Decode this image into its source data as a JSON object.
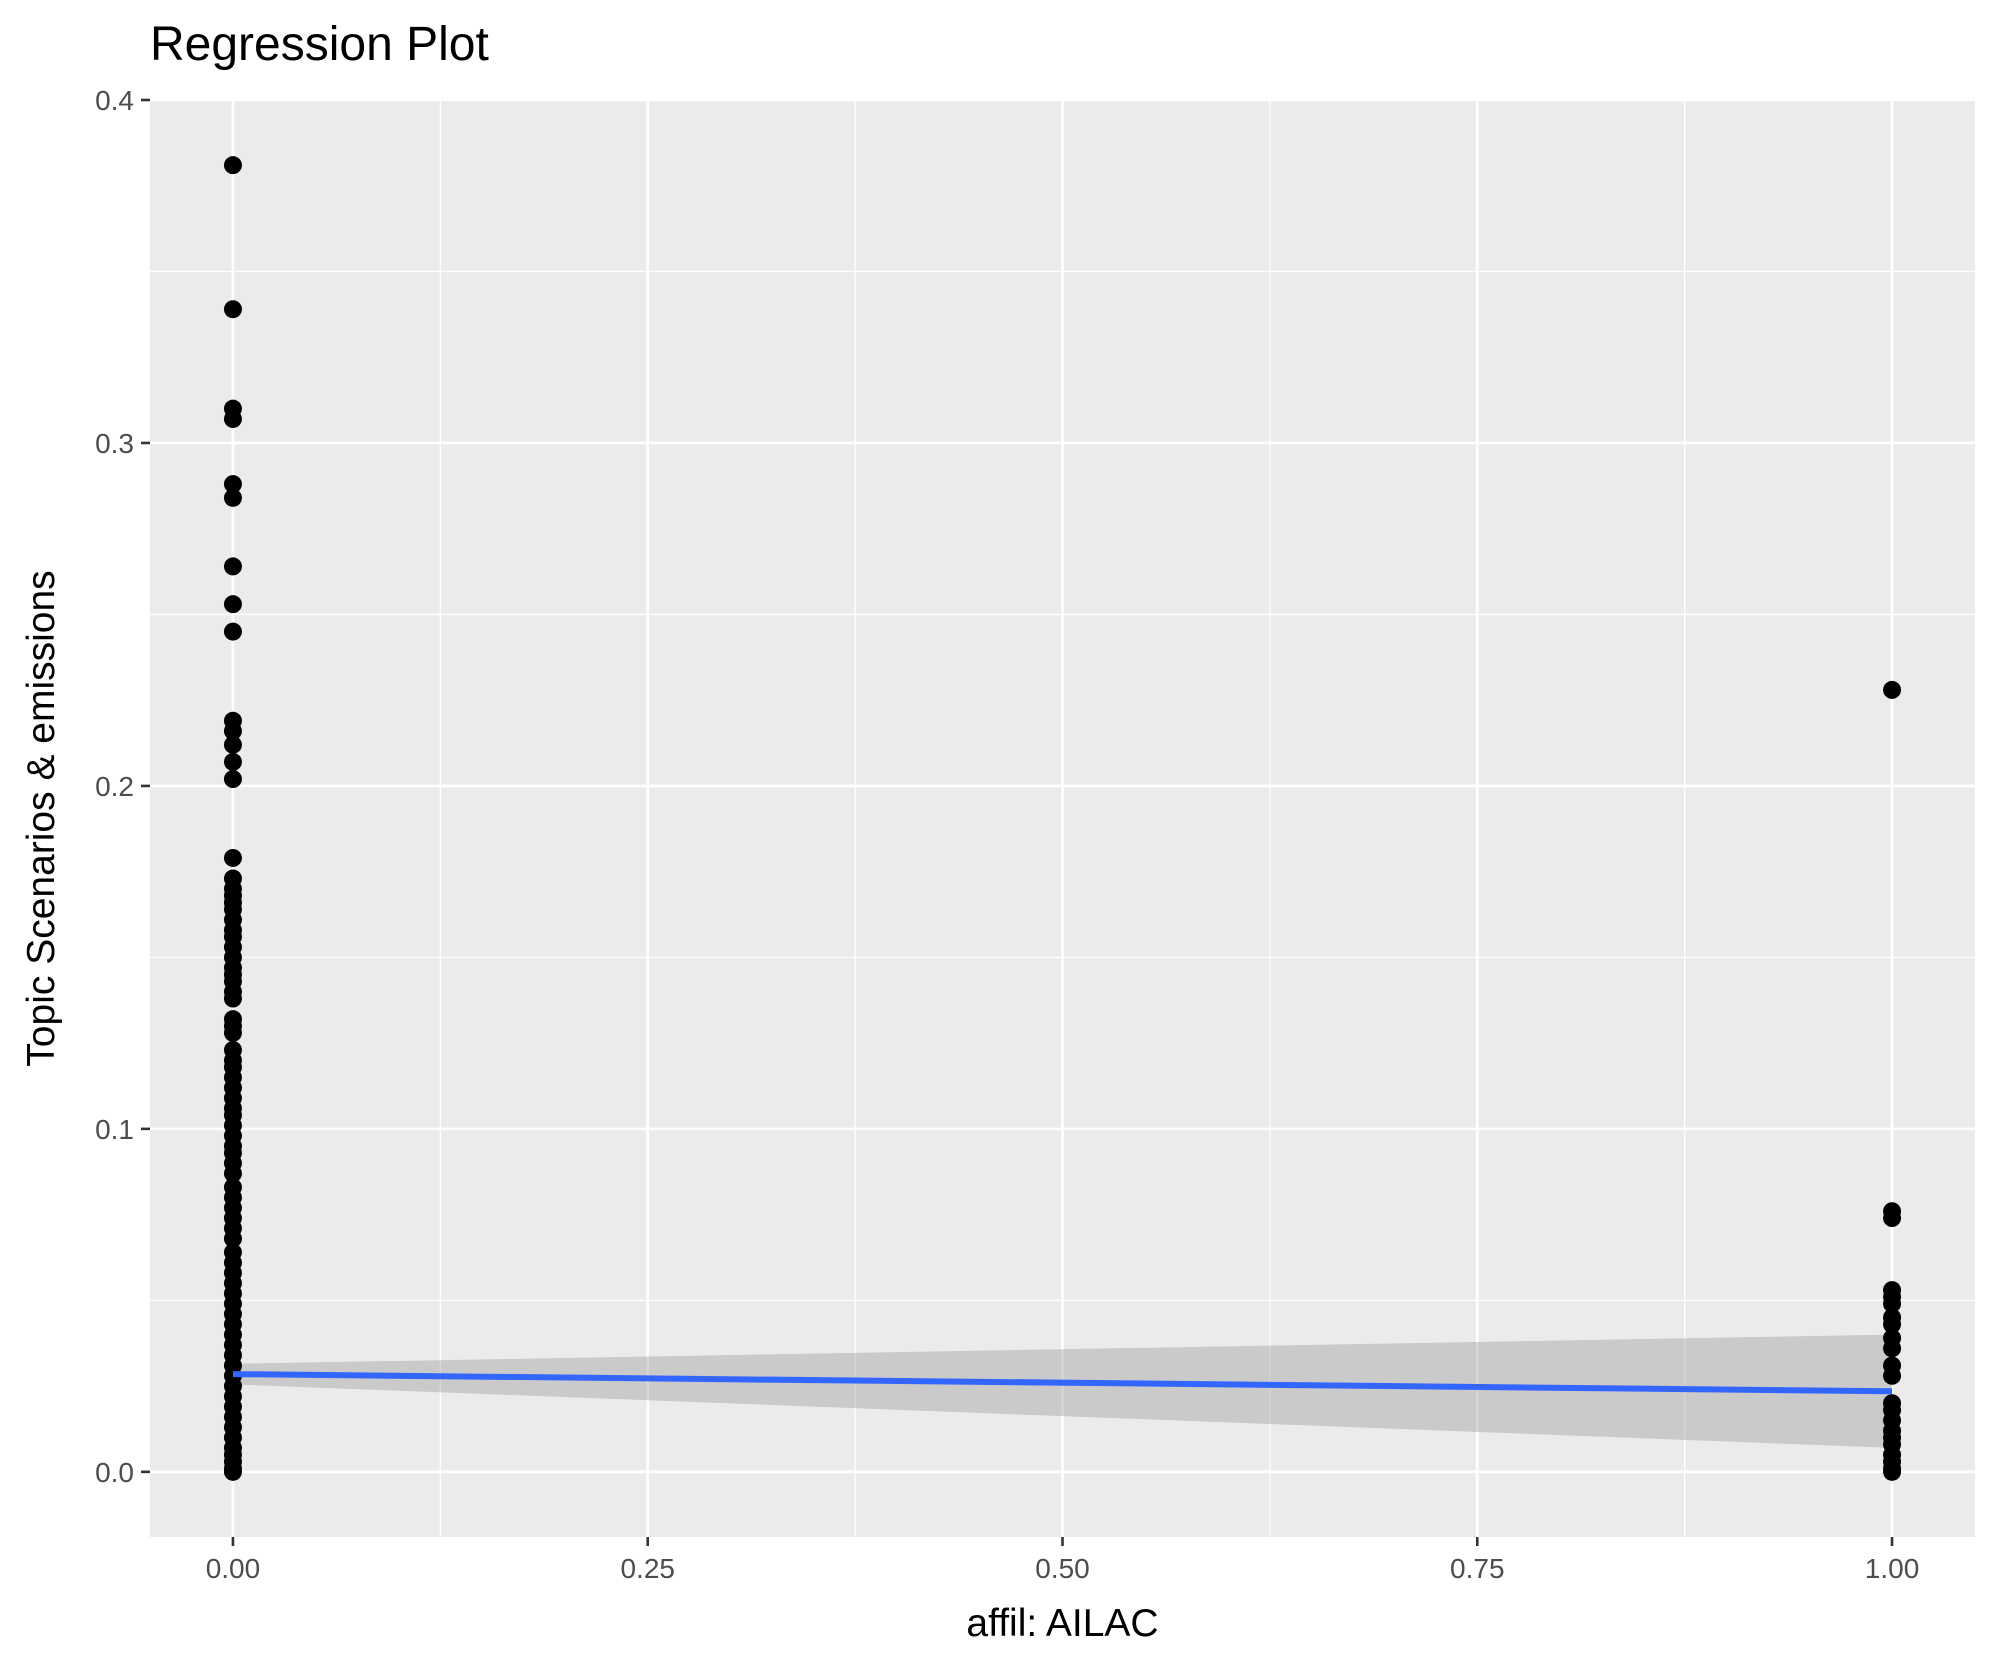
{
  "chart_data": {
    "type": "scatter",
    "title": "Regression Plot",
    "xlabel": "affil: AILAC",
    "ylabel": "Topic Scenarios & emissions",
    "xlim": [
      -0.05,
      1.05
    ],
    "ylim": [
      -0.019,
      0.4
    ],
    "x_major_ticks": [
      0.0,
      0.25,
      0.5,
      0.75,
      1.0
    ],
    "x_tick_labels": [
      "0.00",
      "0.25",
      "0.50",
      "0.75",
      "1.00"
    ],
    "x_minor_ticks": [
      0.125,
      0.375,
      0.625,
      0.875
    ],
    "y_major_ticks": [
      0.0,
      0.1,
      0.2,
      0.3,
      0.4
    ],
    "y_tick_labels": [
      "0.0",
      "0.1",
      "0.2",
      "0.3",
      "0.4"
    ],
    "y_minor_ticks": [
      0.05,
      0.15,
      0.25,
      0.35
    ],
    "grid": true,
    "legend": "none",
    "points": {
      "color": "#000000",
      "series": [
        {
          "x": 0,
          "y": [
            0.381,
            0.339,
            0.31,
            0.307,
            0.288,
            0.284,
            0.264,
            0.253,
            0.245,
            0.219,
            0.216,
            0.212,
            0.207,
            0.202,
            0.179,
            0.173,
            0.17,
            0.168,
            0.166,
            0.164,
            0.161,
            0.158,
            0.156,
            0.153,
            0.15,
            0.147,
            0.145,
            0.143,
            0.14,
            0.138,
            0.132,
            0.13,
            0.128,
            0.123,
            0.12,
            0.118,
            0.115,
            0.112,
            0.109,
            0.106,
            0.104,
            0.101,
            0.098,
            0.095,
            0.093,
            0.09,
            0.087,
            0.083,
            0.08,
            0.077,
            0.074,
            0.071,
            0.068,
            0.064,
            0.061,
            0.058,
            0.055,
            0.052,
            0.049,
            0.046,
            0.043,
            0.04,
            0.037,
            0.034,
            0.031,
            0.028,
            0.025,
            0.022,
            0.019,
            0.016,
            0.013,
            0.01,
            0.007,
            0.005,
            0.003,
            0.001,
            0.0
          ]
        },
        {
          "x": 1,
          "y": [
            0.228,
            0.076,
            0.074,
            0.053,
            0.051,
            0.049,
            0.045,
            0.043,
            0.039,
            0.036,
            0.031,
            0.028,
            0.02,
            0.018,
            0.015,
            0.012,
            0.01,
            0.008,
            0.005,
            0.003,
            0.001,
            0.0
          ]
        }
      ]
    },
    "regression": {
      "color": "#3366ff",
      "x": [
        0,
        1
      ],
      "fit": [
        0.0285,
        0.0235
      ],
      "ci_lower": [
        0.0255,
        0.007
      ],
      "ci_upper": [
        0.0315,
        0.04
      ]
    }
  }
}
